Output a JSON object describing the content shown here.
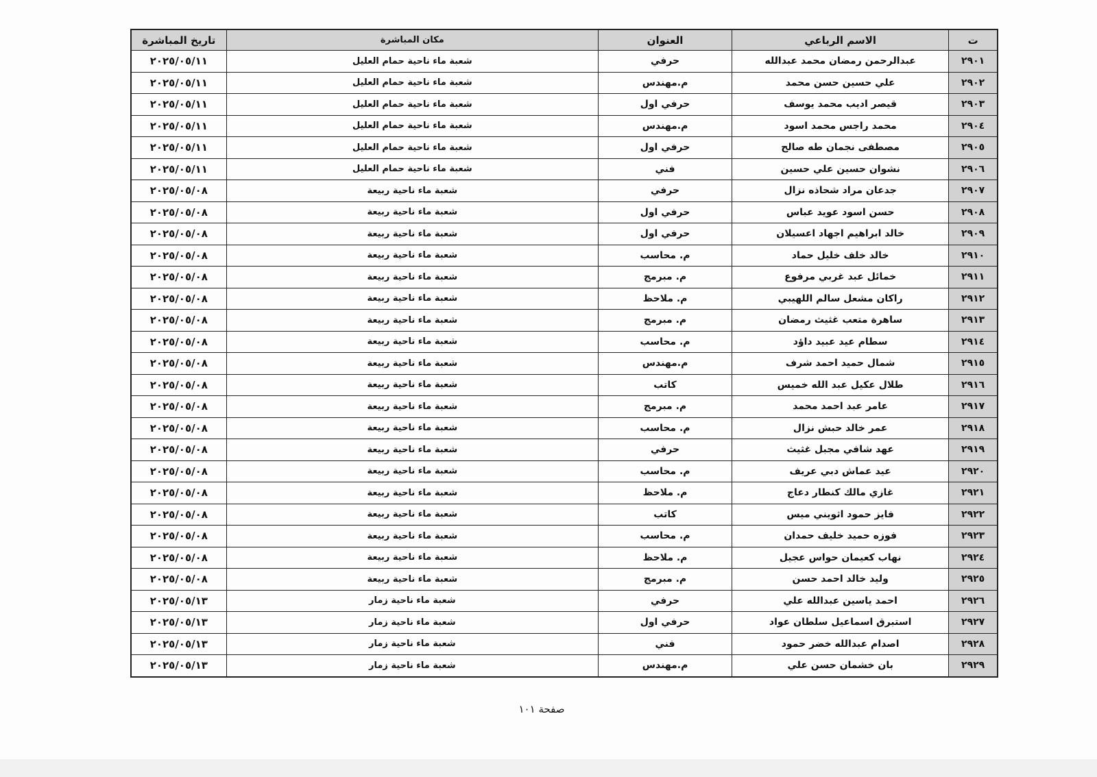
{
  "table": {
    "headers": {
      "no": "ت",
      "name": "الاسم الرباعي",
      "title": "العنوان",
      "place": "مكان المباشرة",
      "date": "تاريخ المباشرة"
    },
    "rows": [
      {
        "no": "٢٩٠١",
        "name": "عبدالرحمن رمضان محمد عبدالله",
        "title": "حرفي",
        "place": "شعبة ماء ناحية حمام العليل",
        "date": "٢٠٢٥/٠٥/١١"
      },
      {
        "no": "٢٩٠٢",
        "name": "علي حسين حسن محمد",
        "title": "م.مهندس",
        "place": "شعبة ماء ناحية حمام العليل",
        "date": "٢٠٢٥/٠٥/١١"
      },
      {
        "no": "٢٩٠٣",
        "name": "قيصر اديب محمد يوسف",
        "title": "حرفي اول",
        "place": "شعبة ماء ناحية حمام العليل",
        "date": "٢٠٢٥/٠٥/١١"
      },
      {
        "no": "٢٩٠٤",
        "name": "محمد راجس محمد اسود",
        "title": "م.مهندس",
        "place": "شعبة ماء ناحية حمام العليل",
        "date": "٢٠٢٥/٠٥/١١"
      },
      {
        "no": "٢٩٠٥",
        "name": "مصطفى نجمان طه صالح",
        "title": "حرفي اول",
        "place": "شعبة ماء ناحية حمام العليل",
        "date": "٢٠٢٥/٠٥/١١"
      },
      {
        "no": "٢٩٠٦",
        "name": "نشوان حسين علي حسين",
        "title": "فني",
        "place": "شعبة ماء ناحية حمام العليل",
        "date": "٢٠٢٥/٠٥/١١"
      },
      {
        "no": "٢٩٠٧",
        "name": "جدعان مراد شحاذه نزال",
        "title": "حرفي",
        "place": "شعبة ماء ناحية ربيعة",
        "date": "٢٠٢٥/٠٥/٠٨"
      },
      {
        "no": "٢٩٠٨",
        "name": "حسن اسود عويد عباس",
        "title": "حرفي اول",
        "place": "شعبة ماء ناحية ربيعة",
        "date": "٢٠٢٥/٠٥/٠٨"
      },
      {
        "no": "٢٩٠٩",
        "name": "خالد ابراهيم اجهاد اعسيلان",
        "title": "حرفي اول",
        "place": "شعبة ماء ناحية ربيعة",
        "date": "٢٠٢٥/٠٥/٠٨"
      },
      {
        "no": "٢٩١٠",
        "name": "خالد خلف خليل حماد",
        "title": "م. محاسب",
        "place": "شعبة ماء ناحية ربيعة",
        "date": "٢٠٢٥/٠٥/٠٨"
      },
      {
        "no": "٢٩١١",
        "name": "خمائل عبد غربي مرفوع",
        "title": "م. مبرمج",
        "place": "شعبة ماء ناحية ربيعة",
        "date": "٢٠٢٥/٠٥/٠٨"
      },
      {
        "no": "٢٩١٢",
        "name": "راكان مشعل سالم اللهيبي",
        "title": "م. ملاحظ",
        "place": "شعبة ماء ناحية ربيعة",
        "date": "٢٠٢٥/٠٥/٠٨"
      },
      {
        "no": "٢٩١٣",
        "name": "ساهرة متعب غثيث رمضان",
        "title": "م. مبرمج",
        "place": "شعبة ماء ناحية ربيعة",
        "date": "٢٠٢٥/٠٥/٠٨"
      },
      {
        "no": "٢٩١٤",
        "name": "سطام عيد عبيد داؤد",
        "title": "م. محاسب",
        "place": "شعبة ماء ناحية ربيعة",
        "date": "٢٠٢٥/٠٥/٠٨"
      },
      {
        "no": "٢٩١٥",
        "name": "شمال حميد احمد شرف",
        "title": "م.مهندس",
        "place": "شعبة ماء ناحية ربيعة",
        "date": "٢٠٢٥/٠٥/٠٨"
      },
      {
        "no": "٢٩١٦",
        "name": "طلال عكيل عبد الله خميس",
        "title": "كاتب",
        "place": "شعبة ماء ناحية ربيعة",
        "date": "٢٠٢٥/٠٥/٠٨"
      },
      {
        "no": "٢٩١٧",
        "name": "عامر عبد احمد محمد",
        "title": "م. مبرمج",
        "place": "شعبة ماء ناحية ربيعة",
        "date": "٢٠٢٥/٠٥/٠٨"
      },
      {
        "no": "٢٩١٨",
        "name": "عمر خالد حبش نزال",
        "title": "م. محاسب",
        "place": "شعبة ماء ناحية ربيعة",
        "date": "٢٠٢٥/٠٥/٠٨"
      },
      {
        "no": "٢٩١٩",
        "name": "عهد شافي مجبل غثيث",
        "title": "حرفي",
        "place": "شعبة ماء ناحية ربيعة",
        "date": "٢٠٢٥/٠٥/٠٨"
      },
      {
        "no": "٢٩٢٠",
        "name": "عيد عماش دبي عريف",
        "title": "م. محاسب",
        "place": "شعبة ماء ناحية ربيعة",
        "date": "٢٠٢٥/٠٥/٠٨"
      },
      {
        "no": "٢٩٢١",
        "name": "غازي مالك كنطار دعاج",
        "title": "م. ملاحظ",
        "place": "شعبة ماء ناحية ربيعة",
        "date": "٢٠٢٥/٠٥/٠٨"
      },
      {
        "no": "٢٩٢٢",
        "name": "فايز حمود اثويني ميس",
        "title": "كاتب",
        "place": "شعبة ماء ناحية ربيعة",
        "date": "٢٠٢٥/٠٥/٠٨"
      },
      {
        "no": "٢٩٢٣",
        "name": "فوزه حميد خليف حمدان",
        "title": "م. محاسب",
        "place": "شعبة ماء ناحية ربيعة",
        "date": "٢٠٢٥/٠٥/٠٨"
      },
      {
        "no": "٢٩٢٤",
        "name": "نهاب كعيمان حواس عجيل",
        "title": "م. ملاحظ",
        "place": "شعبة ماء ناحية ربيعة",
        "date": "٢٠٢٥/٠٥/٠٨"
      },
      {
        "no": "٢٩٢٥",
        "name": "وليد خالد احمد حسن",
        "title": "م. مبرمج",
        "place": "شعبة ماء ناحية ربيعة",
        "date": "٢٠٢٥/٠٥/٠٨"
      },
      {
        "no": "٢٩٢٦",
        "name": "احمد ياسين عبدالله علي",
        "title": "حرفي",
        "place": "شعبة ماء ناحية زمار",
        "date": "٢٠٢٥/٠٥/١٣"
      },
      {
        "no": "٢٩٢٧",
        "name": "استبرق اسماعيل سلطان عواد",
        "title": "حرفي اول",
        "place": "شعبة ماء ناحية زمار",
        "date": "٢٠٢٥/٠٥/١٣"
      },
      {
        "no": "٢٩٢٨",
        "name": "اصدام عبدالله خضر حمود",
        "title": "فني",
        "place": "شعبة ماء ناحية زمار",
        "date": "٢٠٢٥/٠٥/١٣"
      },
      {
        "no": "٢٩٢٩",
        "name": "بان خشمان حسن علي",
        "title": "م.مهندس",
        "place": "شعبة ماء ناحية زمار",
        "date": "٢٠٢٥/٠٥/١٣"
      }
    ]
  },
  "footer": {
    "page_label": "صفحة ١٠١"
  }
}
